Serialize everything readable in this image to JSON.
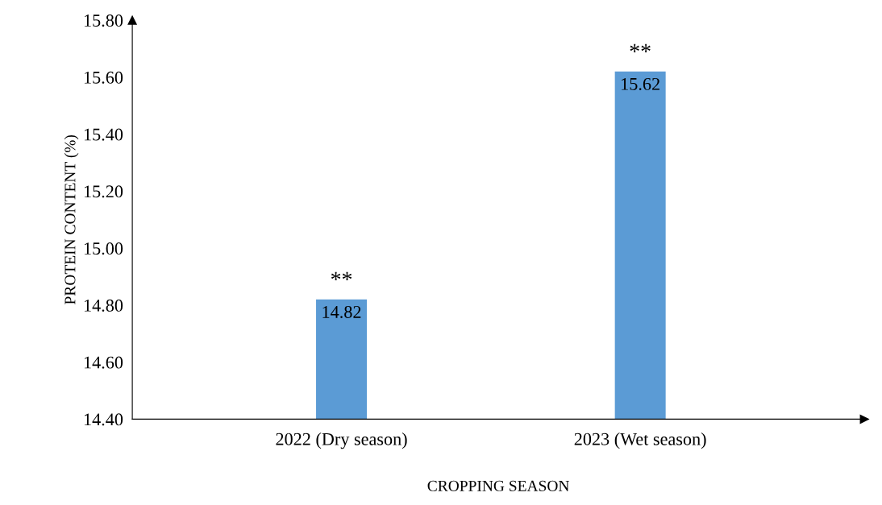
{
  "chart_data": {
    "type": "bar",
    "xlabel": "CROPPING SEASON",
    "ylabel": "PROTEIN CONTENT (%)",
    "categories": [
      "2022 (Dry season)",
      "2023 (Wet season)"
    ],
    "values": [
      14.82,
      15.62
    ],
    "color": "#5b9bd5",
    "value_labels": [
      "14.82",
      "15.62"
    ],
    "ylim": [
      14.4,
      15.8
    ],
    "yticks": [
      {
        "value": 14.4,
        "label": "14.40"
      },
      {
        "value": 14.6,
        "label": "14.60"
      },
      {
        "value": 14.8,
        "label": "14.80"
      },
      {
        "value": 15.0,
        "label": "15.00"
      },
      {
        "value": 15.2,
        "label": "15.20"
      },
      {
        "value": 15.4,
        "label": "15.40"
      },
      {
        "value": 15.6,
        "label": "15.60"
      },
      {
        "value": 15.8,
        "label": "15.80"
      }
    ],
    "annotations": [
      {
        "text": "**",
        "x": "2022 (Dry season)",
        "y": 14.82
      },
      {
        "text": "**",
        "x": "2023 (Wet season)",
        "y": 15.62
      }
    ],
    "grid": false,
    "legend": false
  }
}
